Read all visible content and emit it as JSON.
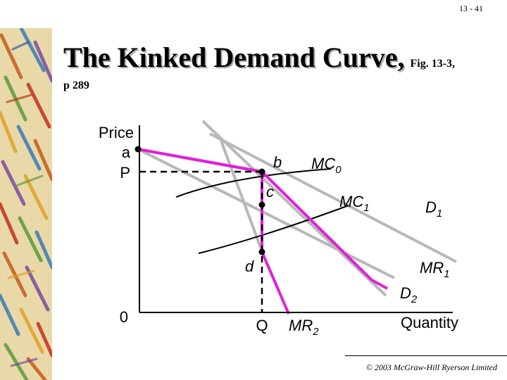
{
  "slide": {
    "page_number": "13 - 41",
    "title": "The Kinked Demand Curve,",
    "title_ref": "Fig. 13-3,",
    "subtitle": "p 289",
    "footer": "© 2003 McGraw-Hill Ryerson Limited"
  },
  "diagram": {
    "y_axis_label": "Price",
    "x_axis_label": "Quantity",
    "origin_label": "0",
    "price_label": "P",
    "quantity_label": "Q",
    "points": {
      "a": "a",
      "b": "b",
      "c": "c",
      "d": "d"
    },
    "curves": {
      "mc0": {
        "label": "MC",
        "subscript": "0"
      },
      "mc1": {
        "label": "MC",
        "subscript": "1"
      },
      "d1": {
        "label": "D",
        "subscript": "1"
      },
      "d2": {
        "label": "D",
        "subscript": "2"
      },
      "mr1": {
        "label": "MR",
        "subscript": "1"
      },
      "mr2": {
        "label": "MR",
        "subscript": "2"
      }
    },
    "colors": {
      "kinked_curve": "#e020d8",
      "alt_curves": "#b8b8b8",
      "cost_curves": "#000000"
    }
  }
}
